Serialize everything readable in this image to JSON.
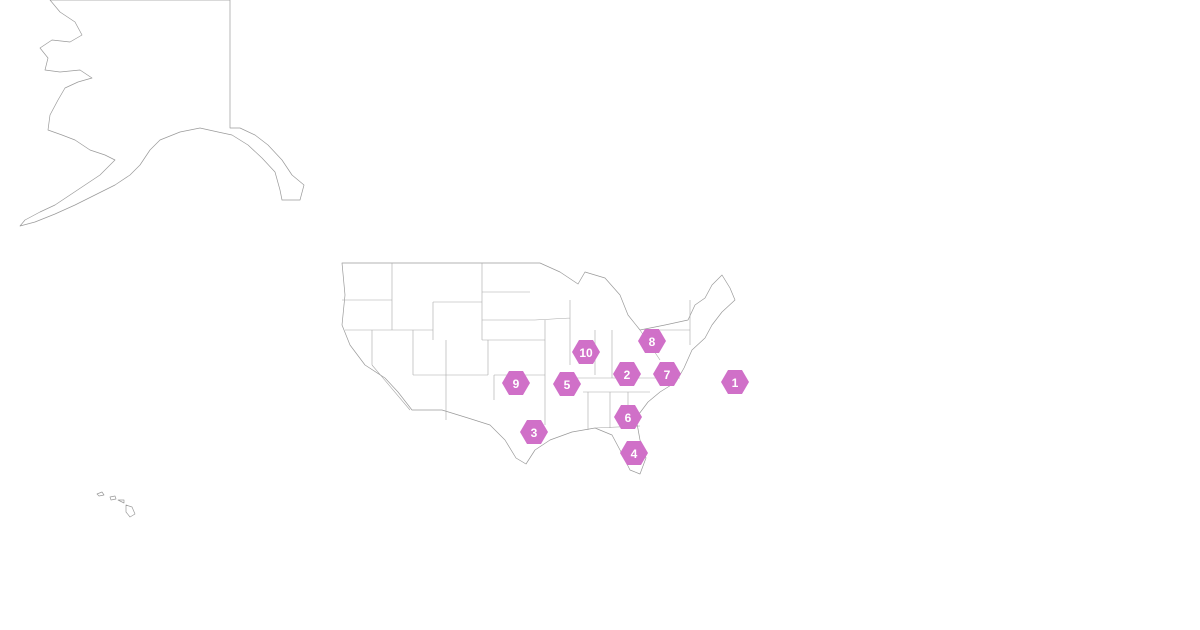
{
  "map": {
    "region": "United States",
    "marker_color": "#d070c8",
    "marker_shape": "hexagon",
    "markers": [
      {
        "label": "1"
      },
      {
        "label": "2"
      },
      {
        "label": "3"
      },
      {
        "label": "4"
      },
      {
        "label": "5"
      },
      {
        "label": "6"
      },
      {
        "label": "7"
      },
      {
        "label": "8"
      },
      {
        "label": "9"
      },
      {
        "label": "10"
      }
    ]
  }
}
